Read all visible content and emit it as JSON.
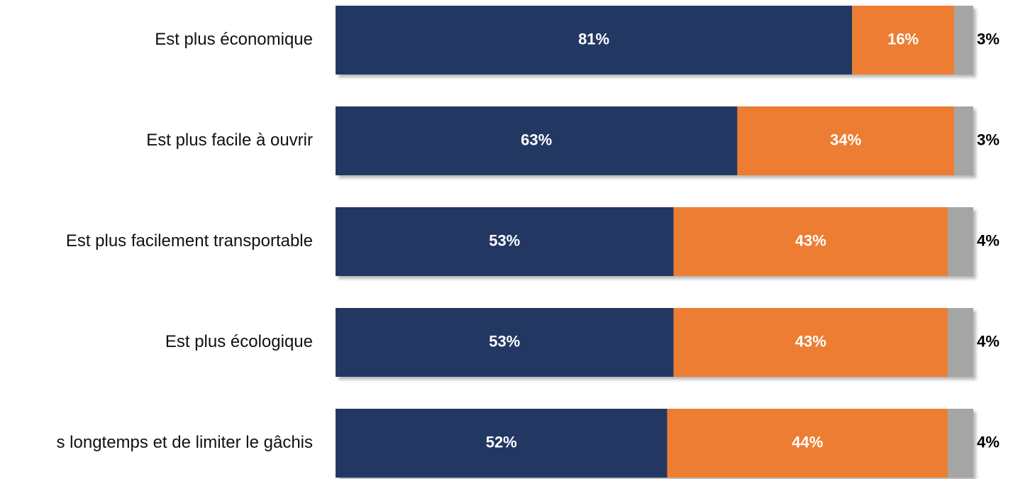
{
  "chart_data": {
    "type": "stacked-bar-horizontal",
    "categories": [
      "Est plus économique",
      "Est plus facile à ouvrir",
      "Est plus facilement transportable",
      "Est plus écologique",
      "s longtemps et de limiter le gâchis"
    ],
    "series": [
      {
        "color": "#233862",
        "values": [
          81,
          63,
          53,
          53,
          52
        ],
        "value_labels": [
          "81%",
          "63%",
          "53%",
          "53%",
          "52%"
        ]
      },
      {
        "color": "#ed7d31",
        "values": [
          16,
          34,
          43,
          43,
          44
        ],
        "value_labels": [
          "16%",
          "34%",
          "43%",
          "43%",
          "44%"
        ]
      },
      {
        "color": "#a5a5a5",
        "values": [
          3,
          3,
          4,
          4,
          4
        ],
        "value_labels": [
          "3%",
          "3%",
          "4%",
          "4%",
          "4%"
        ]
      }
    ]
  }
}
